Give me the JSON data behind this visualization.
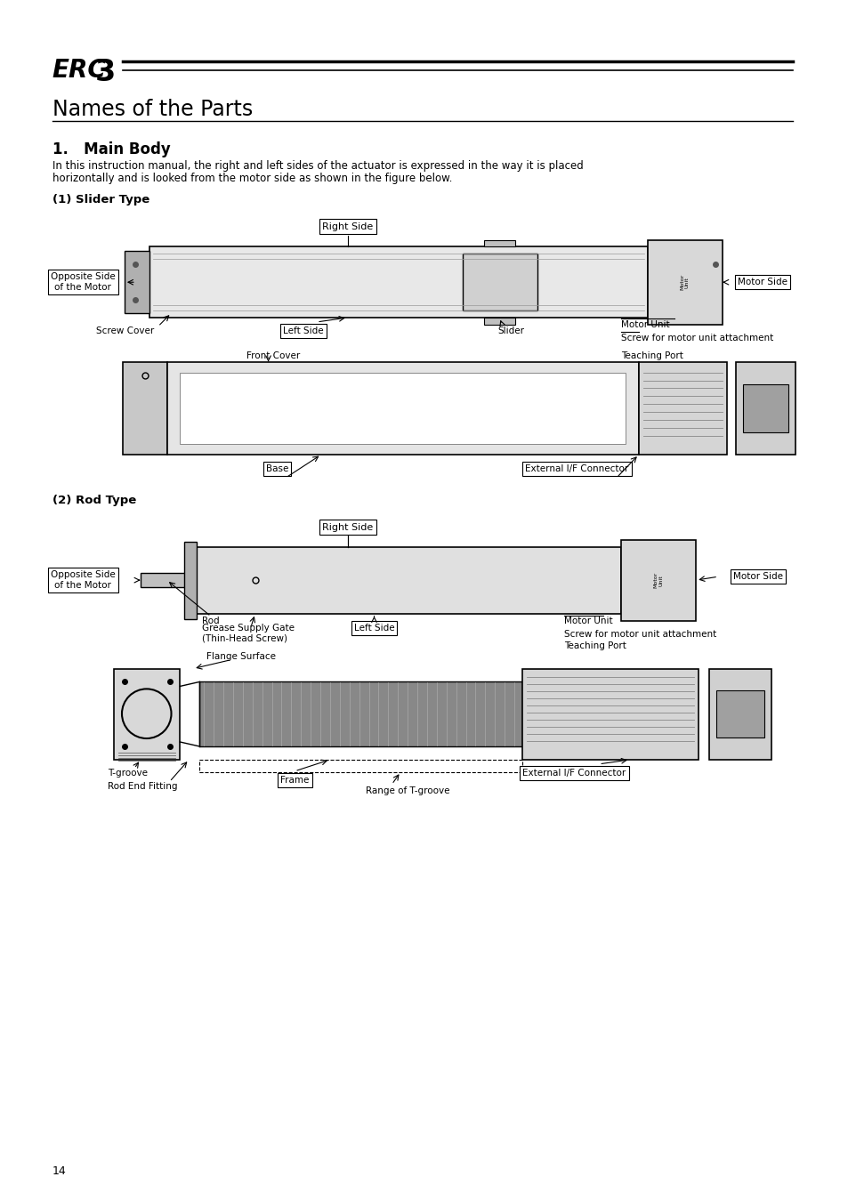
{
  "page_width": 9.54,
  "page_height": 13.5,
  "bg_color": "#ffffff",
  "title": "Names of the Parts",
  "section": "1.   Main Body",
  "body_line1": "In this instruction manual, the right and left sides of the actuator is expressed in the way it is placed",
  "body_line2": "horizontally and is looked from the motor side as shown in the figure below.",
  "slider_type_label": "(1) Slider Type",
  "rod_type_label": "(2) Rod Type",
  "page_number": "14",
  "s_right_side": "Right Side",
  "s_left_side": "Left Side",
  "s_opposite_side": "Opposite Side\nof the Motor",
  "s_motor_side": "Motor Side",
  "s_screw_cover": "Screw Cover",
  "s_slider": "Slider",
  "s_motor_unit": "Motor Unit",
  "s_screw_motor": "Screw for motor unit attachment",
  "s_front_cover": "Front Cover",
  "s_teaching_port": "Teaching Port",
  "s_base": "Base",
  "s_external_if": "External I/F Connector",
  "r_right_side": "Right Side",
  "r_left_side": "Left Side",
  "r_opposite_side": "Opposite Side\nof the Motor",
  "r_motor_side": "Motor Side",
  "r_rod": "Rod",
  "r_grease_supply": "Grease Supply Gate\n(Thin-Head Screw)",
  "r_motor_unit": "Motor Unit",
  "r_screw_motor": "Screw for motor unit attachment",
  "r_flange_surface": "Flange Surface",
  "r_teaching_port": "Teaching Port",
  "r_t_groove": "T-groove",
  "r_rod_end_fitting": "Rod End Fitting",
  "r_frame": "Frame",
  "r_external_if": "External I/F Connector",
  "r_range_t_groove": "Range of T-groove"
}
